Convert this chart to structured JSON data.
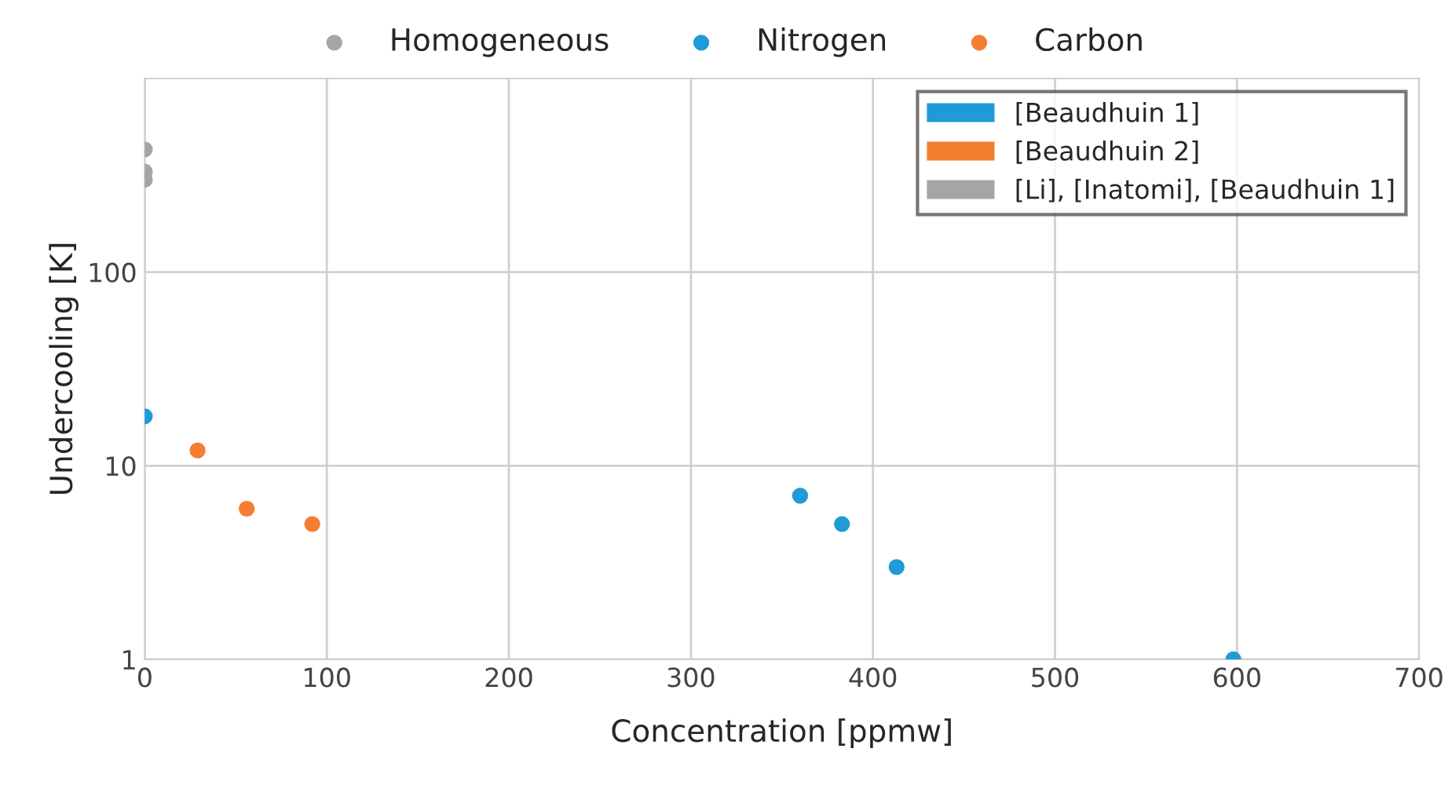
{
  "chart_data": {
    "type": "scatter",
    "xlabel": "Concentration [ppmw]",
    "ylabel": "Undercooling [K]",
    "series": [
      {
        "name": "Homogeneous",
        "color": "#a5a5a5",
        "x": [
          0,
          0,
          0
        ],
        "values": [
          430,
          330,
          300
        ]
      },
      {
        "name": "Nitrogen",
        "color": "#1f9bd7",
        "x": [
          0,
          360,
          383,
          413,
          598
        ],
        "values": [
          18,
          7,
          5,
          3,
          1
        ]
      },
      {
        "name": "Carbon",
        "color": "#f47e30",
        "x": [
          29,
          56,
          92
        ],
        "values": [
          12,
          6,
          5
        ]
      }
    ],
    "xlim": [
      0,
      700
    ],
    "xticks": [
      0,
      100,
      200,
      300,
      400,
      500,
      600,
      700
    ],
    "ylim": [
      1,
      1000
    ],
    "yticks": [
      1,
      10,
      100
    ],
    "log": "y",
    "grid": true,
    "legend": "top",
    "marker": "circle",
    "annotations": [
      "[Beaudhuin 1]",
      "[Beaudhuin 2]",
      "[Li], [Inatomi], [Beaudhuin 1]"
    ]
  }
}
